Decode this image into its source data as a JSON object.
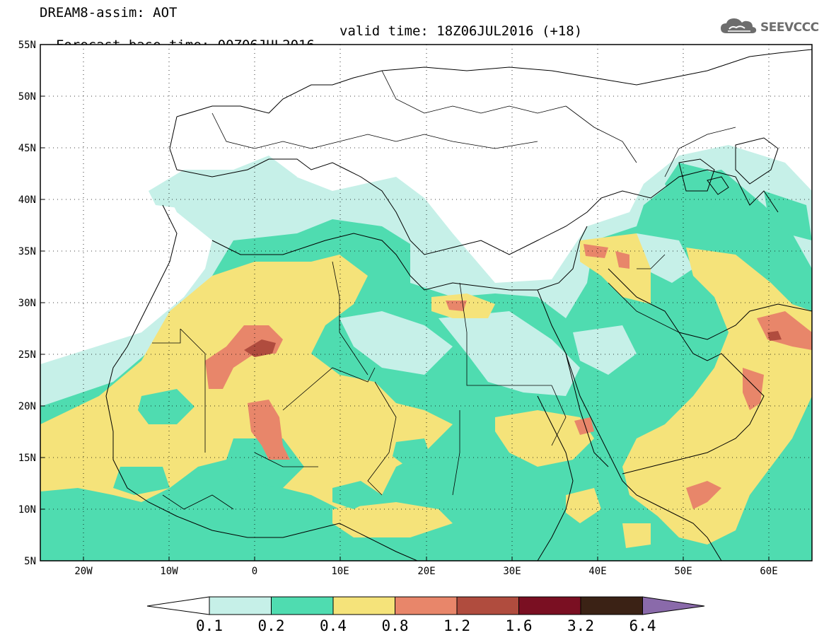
{
  "header": {
    "line1": "DREAM8-assim: AOT",
    "line2": "Forecast base time: 00Z06JUL2016",
    "valid_time": "valid time: 18Z06JUL2016 (+18)"
  },
  "logo": {
    "text": "SEEVCCC",
    "icon": "cloud-icon",
    "color": "#6d6d6d"
  },
  "map": {
    "region": "Northern Africa, Middle East and Southern Europe",
    "lon_range": [
      -25,
      65
    ],
    "lat_range": [
      5,
      55
    ],
    "lat_labels": [
      "55N",
      "50N",
      "45N",
      "40N",
      "35N",
      "30N",
      "25N",
      "20N",
      "15N",
      "10N",
      "5N"
    ],
    "lon_labels": [
      "20W",
      "10W",
      "0",
      "10E",
      "20E",
      "30E",
      "40E",
      "50E",
      "60E"
    ],
    "grid": "dotted"
  },
  "colorbar": {
    "levels": [
      "0.1",
      "0.2",
      "0.4",
      "0.8",
      "1.2",
      "1.6",
      "3.2",
      "6.4"
    ],
    "colors": [
      "#ffffff",
      "#c6f0e8",
      "#4fdcb0",
      "#f5e37a",
      "#e8866a",
      "#b04c3e",
      "#7a0f22",
      "#3b2215",
      "#8a6aaa"
    ]
  }
}
